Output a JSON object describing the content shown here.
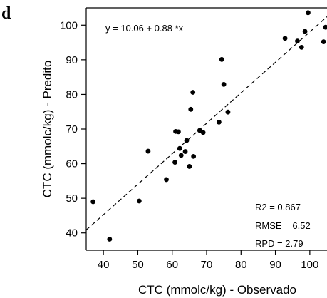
{
  "panel_label": "d",
  "chart_data": {
    "type": "scatter",
    "xlabel": "CTC (mmolc/kg) - Observado",
    "ylabel": "CTC (mmolc/kg) - Predito",
    "xlim": [
      35,
      105
    ],
    "ylim": [
      35,
      105
    ],
    "xticks": [
      40,
      50,
      60,
      70,
      80,
      90,
      100
    ],
    "yticks": [
      40,
      50,
      60,
      70,
      80,
      90,
      100
    ],
    "x_tick_labels": [
      "40",
      "50",
      "60",
      "70",
      "80",
      "90",
      "100"
    ],
    "y_tick_labels": [
      "40",
      "50",
      "60",
      "70",
      "80",
      "90",
      "100"
    ],
    "equation": "y =  10.06 + 0.88 *x",
    "fit_line": {
      "intercept": 10.06,
      "slope": 0.88,
      "style": "dashed"
    },
    "stats": [
      "R2 =  0.867",
      "RMSE =  6.52",
      "RPD =  2.79"
    ],
    "grid": false,
    "points": [
      {
        "x": 37.0,
        "y": 49.0
      },
      {
        "x": 41.8,
        "y": 38.2
      },
      {
        "x": 50.4,
        "y": 49.2
      },
      {
        "x": 53.0,
        "y": 63.6
      },
      {
        "x": 58.3,
        "y": 55.4
      },
      {
        "x": 60.8,
        "y": 60.4
      },
      {
        "x": 61.0,
        "y": 69.3
      },
      {
        "x": 61.8,
        "y": 69.2
      },
      {
        "x": 62.2,
        "y": 64.4
      },
      {
        "x": 62.6,
        "y": 62.4
      },
      {
        "x": 63.8,
        "y": 63.5
      },
      {
        "x": 64.2,
        "y": 66.7
      },
      {
        "x": 65.0,
        "y": 59.2
      },
      {
        "x": 65.4,
        "y": 75.7
      },
      {
        "x": 66.0,
        "y": 80.6
      },
      {
        "x": 66.2,
        "y": 62.1
      },
      {
        "x": 68.0,
        "y": 69.6
      },
      {
        "x": 69.0,
        "y": 69.0
      },
      {
        "x": 73.6,
        "y": 72.0
      },
      {
        "x": 74.4,
        "y": 90.1
      },
      {
        "x": 75.0,
        "y": 82.9
      },
      {
        "x": 76.2,
        "y": 74.9
      },
      {
        "x": 92.8,
        "y": 96.2
      },
      {
        "x": 96.4,
        "y": 95.4
      },
      {
        "x": 97.6,
        "y": 93.6
      },
      {
        "x": 98.6,
        "y": 98.2
      },
      {
        "x": 99.5,
        "y": 103.6
      },
      {
        "x": 104.0,
        "y": 95.2
      },
      {
        "x": 104.6,
        "y": 99.4
      }
    ]
  }
}
